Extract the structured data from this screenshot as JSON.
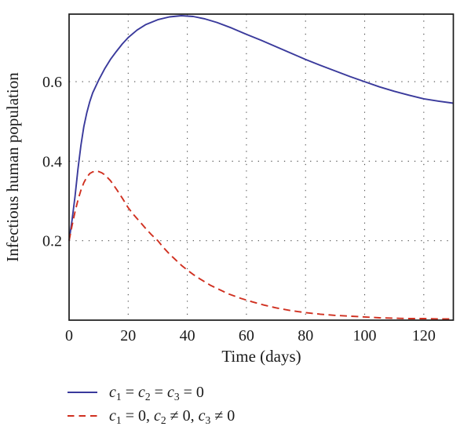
{
  "figure_label": "infectious-population-over-time",
  "colors": {
    "frame": "#1a1a1a",
    "grid": "#4d4d4d",
    "text": "#1a1a1a",
    "series_baseline": "#3a3a9c",
    "series_control": "#d03020",
    "background": "#ffffff"
  },
  "chart_data": {
    "type": "line",
    "title": "",
    "xlabel": "Time (days)",
    "ylabel": "Infectious human population",
    "xlim": [
      0,
      130
    ],
    "ylim": [
      0,
      0.77
    ],
    "x_ticks": [
      0,
      20,
      40,
      60,
      80,
      100,
      120
    ],
    "y_ticks": [
      0.2,
      0.4,
      0.6
    ],
    "grid": "dotted",
    "legend_position": "below-left",
    "series": [
      {
        "name": "c_1 = c_2 = c_3 = 0",
        "color": "#3a3a9c",
        "style": "solid",
        "points": [
          [
            0,
            0.2
          ],
          [
            1,
            0.252
          ],
          [
            2,
            0.31
          ],
          [
            3,
            0.38
          ],
          [
            4,
            0.44
          ],
          [
            5,
            0.487
          ],
          [
            6,
            0.522
          ],
          [
            7,
            0.55
          ],
          [
            8,
            0.572
          ],
          [
            10,
            0.604
          ],
          [
            12,
            0.632
          ],
          [
            14,
            0.656
          ],
          [
            16,
            0.676
          ],
          [
            18,
            0.695
          ],
          [
            20,
            0.711
          ],
          [
            23,
            0.73
          ],
          [
            26,
            0.744
          ],
          [
            30,
            0.756
          ],
          [
            34,
            0.763
          ],
          [
            38,
            0.766
          ],
          [
            42,
            0.764
          ],
          [
            46,
            0.758
          ],
          [
            50,
            0.749
          ],
          [
            55,
            0.735
          ],
          [
            60,
            0.719
          ],
          [
            65,
            0.704
          ],
          [
            70,
            0.688
          ],
          [
            75,
            0.672
          ],
          [
            80,
            0.656
          ],
          [
            85,
            0.641
          ],
          [
            90,
            0.627
          ],
          [
            95,
            0.613
          ],
          [
            100,
            0.6
          ],
          [
            105,
            0.587
          ],
          [
            110,
            0.576
          ],
          [
            115,
            0.566
          ],
          [
            120,
            0.557
          ],
          [
            125,
            0.551
          ],
          [
            130,
            0.546
          ]
        ]
      },
      {
        "name": "c_1 = 0, c_2 ≠ 0, c_3 ≠ 0",
        "color": "#d03020",
        "style": "dashed",
        "points": [
          [
            0,
            0.2
          ],
          [
            1,
            0.238
          ],
          [
            2,
            0.272
          ],
          [
            3,
            0.302
          ],
          [
            4,
            0.327
          ],
          [
            5,
            0.346
          ],
          [
            6,
            0.36
          ],
          [
            7,
            0.369
          ],
          [
            8,
            0.373
          ],
          [
            9,
            0.375
          ],
          [
            10,
            0.374
          ],
          [
            11,
            0.371
          ],
          [
            12,
            0.366
          ],
          [
            14,
            0.351
          ],
          [
            16,
            0.33
          ],
          [
            18,
            0.307
          ],
          [
            20,
            0.283
          ],
          [
            22,
            0.264
          ],
          [
            24,
            0.247
          ],
          [
            26,
            0.23
          ],
          [
            28,
            0.214
          ],
          [
            30,
            0.2
          ],
          [
            32,
            0.182
          ],
          [
            34,
            0.166
          ],
          [
            36,
            0.152
          ],
          [
            38,
            0.138
          ],
          [
            40,
            0.126
          ],
          [
            42,
            0.115
          ],
          [
            44,
            0.105
          ],
          [
            46,
            0.096
          ],
          [
            48,
            0.087
          ],
          [
            50,
            0.08
          ],
          [
            54,
            0.066
          ],
          [
            58,
            0.055
          ],
          [
            62,
            0.046
          ],
          [
            66,
            0.038
          ],
          [
            70,
            0.031
          ],
          [
            75,
            0.024
          ],
          [
            80,
            0.019
          ],
          [
            85,
            0.015
          ],
          [
            90,
            0.012
          ],
          [
            95,
            0.01
          ],
          [
            100,
            0.008
          ],
          [
            105,
            0.006
          ],
          [
            110,
            0.005
          ],
          [
            115,
            0.004
          ],
          [
            120,
            0.004
          ],
          [
            125,
            0.003
          ],
          [
            130,
            0.003
          ]
        ]
      }
    ]
  },
  "legend": {
    "items": [
      {
        "label": "c_1 = c_2 = c_3 = 0",
        "line_style": "solid",
        "color": "#3a3a9c"
      },
      {
        "label": "c_1 = 0, c_2 ≠ 0, c_3 ≠ 0",
        "line_style": "dashed",
        "color": "#d03020"
      }
    ]
  }
}
